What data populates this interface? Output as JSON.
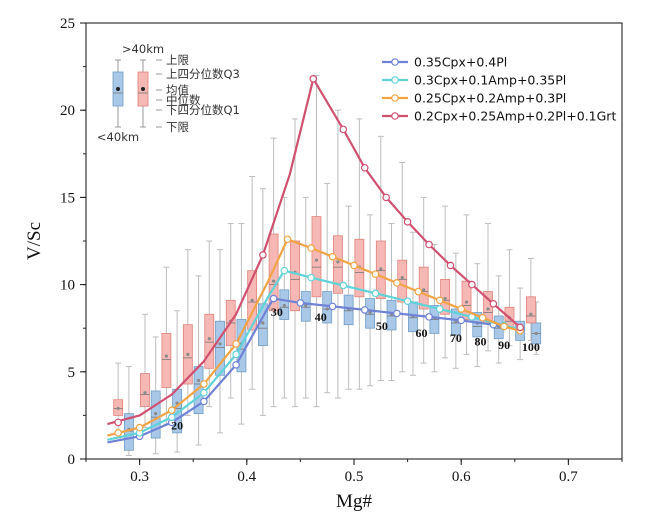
{
  "chart_data": {
    "type": "line",
    "xlabel": "Mg#",
    "ylabel": "V/Sc",
    "xlim": [
      0.25,
      0.75
    ],
    "ylim": [
      0,
      25
    ],
    "xticks": [
      "0.3",
      "0.4",
      "0.5",
      "0.6",
      "0.7"
    ],
    "xtick_values": [
      0.3,
      0.4,
      0.5,
      0.6,
      0.7
    ],
    "yticks": [
      "0",
      "5",
      "10",
      "15",
      "20",
      "25"
    ],
    "ytick_values": [
      0,
      5,
      10,
      15,
      20,
      25
    ],
    "grid": false,
    "legend_position": "top-right",
    "series": [
      {
        "name": "0.35Cpx+0.4Pl",
        "color": "#6f82d6",
        "points": [
          [
            0.27,
            0.95
          ],
          [
            0.3,
            1.3
          ],
          [
            0.33,
            2.1
          ],
          [
            0.36,
            3.3
          ],
          [
            0.39,
            5.4
          ],
          [
            0.42,
            8.7
          ],
          [
            0.425,
            9.2
          ],
          [
            0.45,
            8.95
          ],
          [
            0.48,
            8.75
          ],
          [
            0.51,
            8.55
          ],
          [
            0.54,
            8.35
          ],
          [
            0.57,
            8.15
          ],
          [
            0.6,
            7.95
          ],
          [
            0.63,
            7.7
          ],
          [
            0.655,
            7.45
          ]
        ],
        "markers": [
          [
            0.3,
            1.3
          ],
          [
            0.33,
            2.1
          ],
          [
            0.36,
            3.3
          ],
          [
            0.39,
            5.4
          ],
          [
            0.425,
            9.2
          ],
          [
            0.45,
            8.95
          ],
          [
            0.48,
            8.75
          ],
          [
            0.51,
            8.55
          ],
          [
            0.54,
            8.35
          ],
          [
            0.57,
            8.15
          ],
          [
            0.6,
            7.95
          ],
          [
            0.63,
            7.7
          ],
          [
            0.655,
            7.45
          ]
        ]
      },
      {
        "name": "0.3Cpx+0.1Amp+0.35Pl",
        "color": "#5fd3d8",
        "points": [
          [
            0.27,
            1.1
          ],
          [
            0.3,
            1.5
          ],
          [
            0.33,
            2.4
          ],
          [
            0.36,
            3.8
          ],
          [
            0.39,
            6.0
          ],
          [
            0.42,
            9.3
          ],
          [
            0.435,
            10.8
          ],
          [
            0.46,
            10.4
          ],
          [
            0.49,
            9.95
          ],
          [
            0.52,
            9.5
          ],
          [
            0.55,
            9.05
          ],
          [
            0.58,
            8.6
          ],
          [
            0.61,
            8.15
          ],
          [
            0.64,
            7.65
          ],
          [
            0.655,
            7.45
          ]
        ],
        "markers": [
          [
            0.3,
            1.5
          ],
          [
            0.33,
            2.4
          ],
          [
            0.36,
            3.8
          ],
          [
            0.39,
            6.0
          ],
          [
            0.435,
            10.8
          ],
          [
            0.46,
            10.4
          ],
          [
            0.49,
            9.95
          ],
          [
            0.52,
            9.5
          ],
          [
            0.55,
            9.05
          ],
          [
            0.58,
            8.6
          ],
          [
            0.61,
            8.15
          ],
          [
            0.64,
            7.65
          ],
          [
            0.655,
            7.45
          ]
        ]
      },
      {
        "name": "0.25Cpx+0.2Amp+0.3Pl",
        "color": "#f2a444",
        "points": [
          [
            0.27,
            1.35
          ],
          [
            0.3,
            1.8
          ],
          [
            0.33,
            2.8
          ],
          [
            0.36,
            4.3
          ],
          [
            0.39,
            6.6
          ],
          [
            0.42,
            10.2
          ],
          [
            0.438,
            12.6
          ],
          [
            0.46,
            12.1
          ],
          [
            0.48,
            11.6
          ],
          [
            0.5,
            11.1
          ],
          [
            0.52,
            10.6
          ],
          [
            0.54,
            10.1
          ],
          [
            0.56,
            9.6
          ],
          [
            0.58,
            9.1
          ],
          [
            0.6,
            8.6
          ],
          [
            0.62,
            8.1
          ],
          [
            0.64,
            7.6
          ],
          [
            0.655,
            7.35
          ]
        ],
        "markers": [
          [
            0.28,
            1.5
          ],
          [
            0.3,
            1.8
          ],
          [
            0.33,
            2.8
          ],
          [
            0.36,
            4.3
          ],
          [
            0.39,
            6.6
          ],
          [
            0.438,
            12.6
          ],
          [
            0.46,
            12.1
          ],
          [
            0.48,
            11.6
          ],
          [
            0.5,
            11.1
          ],
          [
            0.52,
            10.6
          ],
          [
            0.54,
            10.1
          ],
          [
            0.56,
            9.6
          ],
          [
            0.58,
            9.1
          ],
          [
            0.6,
            8.6
          ],
          [
            0.62,
            8.1
          ],
          [
            0.64,
            7.6
          ],
          [
            0.655,
            7.35
          ]
        ]
      },
      {
        "name": "0.2Cpx+0.25Amp+0.2Pl+0.1Grt",
        "color": "#d0506f",
        "points": [
          [
            0.27,
            2.0
          ],
          [
            0.3,
            2.5
          ],
          [
            0.33,
            3.7
          ],
          [
            0.36,
            5.6
          ],
          [
            0.39,
            8.3
          ],
          [
            0.415,
            11.7
          ],
          [
            0.44,
            16.3
          ],
          [
            0.462,
            21.8
          ],
          [
            0.49,
            18.9
          ],
          [
            0.51,
            16.7
          ],
          [
            0.53,
            15.0
          ],
          [
            0.55,
            13.6
          ],
          [
            0.57,
            12.3
          ],
          [
            0.59,
            11.1
          ],
          [
            0.61,
            10.0
          ],
          [
            0.63,
            8.9
          ],
          [
            0.655,
            7.55
          ]
        ],
        "markers": [
          [
            0.28,
            2.1
          ],
          [
            0.415,
            11.7
          ],
          [
            0.462,
            21.8
          ],
          [
            0.49,
            18.9
          ],
          [
            0.51,
            16.7
          ],
          [
            0.53,
            15.0
          ],
          [
            0.55,
            13.6
          ],
          [
            0.57,
            12.3
          ],
          [
            0.59,
            11.1
          ],
          [
            0.61,
            10.0
          ],
          [
            0.63,
            8.9
          ],
          [
            0.655,
            7.55
          ]
        ]
      }
    ],
    "boxplots": {
      "groups": [
        {
          "name": "<40km",
          "color": "#a9c8e8",
          "stroke": "#6f9dc6",
          "boxes": [
            {
              "x": 0.29,
              "low": 0.2,
              "q1": 0.5,
              "median": 1.6,
              "mean": 1.7,
              "q3": 2.6,
              "high": 5.3
            },
            {
              "x": 0.315,
              "low": 0.3,
              "q1": 1.2,
              "median": 2.4,
              "mean": 2.6,
              "q3": 3.9,
              "high": 7.0
            },
            {
              "x": 0.335,
              "low": 0.4,
              "q1": 1.5,
              "median": 2.9,
              "mean": 3.2,
              "q3": 4.0,
              "high": 8.5
            },
            {
              "x": 0.355,
              "low": 0.8,
              "q1": 2.6,
              "median": 4.3,
              "mean": 4.5,
              "q3": 5.3,
              "high": 10.5
            },
            {
              "x": 0.375,
              "low": 1.5,
              "q1": 4.8,
              "median": 6.4,
              "mean": 6.6,
              "q3": 7.9,
              "high": 12.0
            },
            {
              "x": 0.395,
              "low": 2.0,
              "q1": 5.0,
              "median": 6.3,
              "mean": 6.6,
              "q3": 8.0,
              "high": 13.5
            },
            {
              "x": 0.415,
              "low": 2.5,
              "q1": 6.5,
              "median": 7.5,
              "mean": 7.8,
              "q3": 8.9,
              "high": 15.5
            },
            {
              "x": 0.435,
              "low": 3.5,
              "q1": 8.0,
              "median": 8.7,
              "mean": 8.8,
              "q3": 9.7,
              "high": 15.0
            },
            {
              "x": 0.455,
              "low": 3.5,
              "q1": 7.9,
              "median": 8.7,
              "mean": 8.8,
              "q3": 9.6,
              "high": 15.0
            },
            {
              "x": 0.475,
              "low": 3.8,
              "q1": 7.8,
              "median": 8.6,
              "mean": 8.6,
              "q3": 9.6,
              "high": 15.8
            },
            {
              "x": 0.495,
              "low": 4.0,
              "q1": 7.7,
              "median": 8.5,
              "mean": 8.6,
              "q3": 9.4,
              "high": 14.5
            },
            {
              "x": 0.515,
              "low": 4.2,
              "q1": 7.5,
              "median": 8.3,
              "mean": 8.4,
              "q3": 9.2,
              "high": 14.0
            },
            {
              "x": 0.535,
              "low": 4.5,
              "q1": 7.4,
              "median": 8.2,
              "mean": 8.3,
              "q3": 9.1,
              "high": 13.5
            },
            {
              "x": 0.555,
              "low": 4.8,
              "q1": 7.3,
              "median": 8.1,
              "mean": 8.2,
              "q3": 9.0,
              "high": 13.0
            },
            {
              "x": 0.575,
              "low": 5.0,
              "q1": 7.2,
              "median": 8.0,
              "mean": 8.1,
              "q3": 8.8,
              "high": 12.3
            },
            {
              "x": 0.595,
              "low": 5.2,
              "q1": 7.1,
              "median": 7.8,
              "mean": 7.9,
              "q3": 8.6,
              "high": 11.8
            },
            {
              "x": 0.615,
              "low": 5.3,
              "q1": 7.0,
              "median": 7.6,
              "mean": 7.8,
              "q3": 8.4,
              "high": 11.2
            },
            {
              "x": 0.635,
              "low": 5.5,
              "q1": 6.9,
              "median": 7.5,
              "mean": 7.6,
              "q3": 8.2,
              "high": 10.5
            },
            {
              "x": 0.655,
              "low": 5.7,
              "q1": 6.8,
              "median": 7.4,
              "mean": 7.4,
              "q3": 7.9,
              "high": 9.8
            },
            {
              "x": 0.67,
              "low": 6.0,
              "q1": 6.6,
              "median": 7.2,
              "mean": 7.2,
              "q3": 7.8,
              "high": 9.0
            }
          ]
        },
        {
          "name": ">40km",
          "color": "#f6b8b4",
          "stroke": "#e0827c",
          "boxes": [
            {
              "x": 0.28,
              "low": 1.2,
              "q1": 2.5,
              "median": 2.9,
              "mean": 2.9,
              "q3": 3.4,
              "high": 5.5
            },
            {
              "x": 0.305,
              "low": 1.8,
              "q1": 3.0,
              "median": 3.7,
              "mean": 3.8,
              "q3": 4.9,
              "high": 8.3
            },
            {
              "x": 0.325,
              "low": 2.0,
              "q1": 4.1,
              "median": 5.7,
              "mean": 5.9,
              "q3": 7.2,
              "high": 11.0
            },
            {
              "x": 0.345,
              "low": 2.5,
              "q1": 4.3,
              "median": 5.8,
              "mean": 6.0,
              "q3": 7.7,
              "high": 12.0
            },
            {
              "x": 0.365,
              "low": 3.0,
              "q1": 5.2,
              "median": 6.7,
              "mean": 6.9,
              "q3": 8.3,
              "high": 12.5
            },
            {
              "x": 0.385,
              "low": 3.5,
              "q1": 6.5,
              "median": 7.8,
              "mean": 7.9,
              "q3": 9.1,
              "high": 13.5
            },
            {
              "x": 0.405,
              "low": 4.0,
              "q1": 7.4,
              "median": 9.0,
              "mean": 9.1,
              "q3": 10.8,
              "high": 16.2
            },
            {
              "x": 0.425,
              "low": 3.0,
              "q1": 8.5,
              "median": 10.0,
              "mean": 10.2,
              "q3": 12.9,
              "high": 18.4
            },
            {
              "x": 0.445,
              "low": 3.0,
              "q1": 8.5,
              "median": 10.3,
              "mean": 10.7,
              "q3": 12.5,
              "high": 19.5
            },
            {
              "x": 0.465,
              "low": 3.0,
              "q1": 9.3,
              "median": 11.0,
              "mean": 11.4,
              "q3": 13.9,
              "high": 22.0
            },
            {
              "x": 0.485,
              "low": 3.5,
              "q1": 9.5,
              "median": 11.0,
              "mean": 11.3,
              "q3": 12.8,
              "high": 20.0
            },
            {
              "x": 0.505,
              "low": 4.0,
              "q1": 9.3,
              "median": 10.7,
              "mean": 11.0,
              "q3": 12.6,
              "high": 19.5
            },
            {
              "x": 0.525,
              "low": 4.5,
              "q1": 9.2,
              "median": 10.8,
              "mean": 10.9,
              "q3": 12.5,
              "high": 18.5
            },
            {
              "x": 0.545,
              "low": 5.0,
              "q1": 9.0,
              "median": 10.3,
              "mean": 10.4,
              "q3": 11.4,
              "high": 17.0
            },
            {
              "x": 0.565,
              "low": 5.5,
              "q1": 8.6,
              "median": 9.6,
              "mean": 9.7,
              "q3": 11.0,
              "high": 15.0
            },
            {
              "x": 0.585,
              "low": 5.8,
              "q1": 8.3,
              "median": 9.1,
              "mean": 9.2,
              "q3": 10.3,
              "high": 14.5
            },
            {
              "x": 0.605,
              "low": 6.0,
              "q1": 8.0,
              "median": 8.8,
              "mean": 9.0,
              "q3": 10.2,
              "high": 14.0
            },
            {
              "x": 0.625,
              "low": 6.2,
              "q1": 7.8,
              "median": 8.4,
              "mean": 8.6,
              "q3": 9.6,
              "high": 13.5
            },
            {
              "x": 0.645,
              "low": 6.5,
              "q1": 7.5,
              "median": 7.9,
              "mean": 8.1,
              "q3": 8.7,
              "high": 12.0
            },
            {
              "x": 0.665,
              "low": 6.8,
              "q1": 7.8,
              "median": 8.2,
              "mean": 8.3,
              "q3": 9.3,
              "high": 11.5
            }
          ]
        }
      ]
    },
    "annotations": [
      {
        "text": "20",
        "x": 0.335,
        "y": 1.7
      },
      {
        "text": "30",
        "x": 0.428,
        "y": 8.2
      },
      {
        "text": "40",
        "x": 0.469,
        "y": 7.9
      },
      {
        "text": "50",
        "x": 0.526,
        "y": 7.4
      },
      {
        "text": "60",
        "x": 0.563,
        "y": 7.0
      },
      {
        "text": "70",
        "x": 0.595,
        "y": 6.7
      },
      {
        "text": "80",
        "x": 0.618,
        "y": 6.5
      },
      {
        "text": "90",
        "x": 0.64,
        "y": 6.3
      },
      {
        "text": "100",
        "x": 0.665,
        "y": 6.2
      }
    ],
    "key": {
      "top_label": ">40km",
      "bottom_label": "<40km",
      "items": [
        "上限",
        "上四分位数Q3",
        "均值",
        "中位数",
        "下四分位数Q1",
        "下限"
      ]
    }
  }
}
